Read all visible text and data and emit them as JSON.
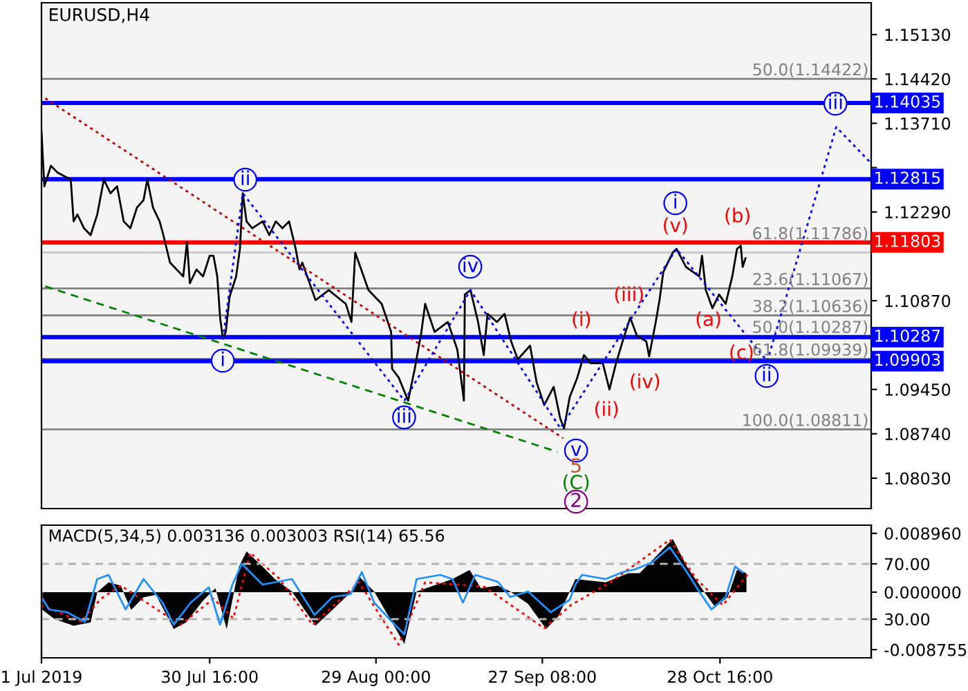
{
  "chart_data": [
    {
      "type": "line",
      "title": "EURUSD,H4",
      "xlim": [
        "2019-07-01T00:00",
        "2019-11-24T08:00"
      ],
      "ylim": [
        1.07543,
        1.15639
      ],
      "yticks": [
        {
          "value": 1.1513,
          "label": "1.15130"
        },
        {
          "value": 1.1442,
          "label": "1.14420"
        },
        {
          "value": 1.1371,
          "label": "1.13710"
        },
        {
          "value": 1.13,
          "label": null
        },
        {
          "value": 1.1229,
          "label": "1.12290"
        },
        {
          "value": 1.1087,
          "label": "1.10870"
        },
        {
          "value": 1.0945,
          "label": "1.09450"
        },
        {
          "value": 1.0874,
          "label": "1.08740"
        },
        {
          "value": 1.0803,
          "label": "1.08030"
        }
      ],
      "tick_labels": "y",
      "grid": false,
      "legend": false,
      "series": [
        {
          "color": "#000000",
          "x": [
            "2019-07-01T00:00",
            "2019-07-01T12:00",
            "2019-07-02T16:00",
            "2019-07-03T20:00",
            "2019-07-06T04:00",
            "2019-07-06T16:00",
            "2019-07-07T08:00",
            "2019-07-08T12:00",
            "2019-07-09T16:00",
            "2019-07-10T20:00",
            "2019-07-12T00:00",
            "2019-07-13T04:00",
            "2019-07-14T08:00",
            "2019-07-15T12:00",
            "2019-07-16T16:00",
            "2019-07-17T20:00",
            "2019-07-19T00:00",
            "2019-07-19T16:00",
            "2019-07-20T16:00",
            "2019-07-21T20:00",
            "2019-07-22T12:00",
            "2019-07-23T16:00",
            "2019-07-24T20:00",
            "2019-07-26T00:00",
            "2019-07-26T16:00",
            "2019-07-27T04:00",
            "2019-07-28T08:00",
            "2019-07-29T12:00",
            "2019-07-30T16:00",
            "2019-07-31T08:00",
            "2019-08-01T00:00",
            "2019-08-01T12:00",
            "2019-08-02T00:00",
            "2019-08-02T12:00",
            "2019-08-03T04:00",
            "2019-08-04T08:00",
            "2019-08-05T00:00",
            "2019-08-05T12:00",
            "2019-08-06T04:00",
            "2019-08-07T04:00",
            "2019-08-09T00:00",
            "2019-08-10T04:00",
            "2019-08-11T08:00",
            "2019-08-12T12:00",
            "2019-08-13T16:00",
            "2019-08-14T20:00",
            "2019-08-15T12:00",
            "2019-08-16T00:00",
            "2019-08-18T08:00",
            "2019-08-20T16:00",
            "2019-08-23T16:00",
            "2019-08-24T16:00",
            "2019-08-25T08:00",
            "2019-08-27T16:00",
            "2019-08-30T00:00",
            "2019-08-31T16:00",
            "2019-08-31T20:00",
            "2019-09-02T00:00",
            "2019-09-03T16:00",
            "2019-09-04T20:00",
            "2019-09-06T00:00",
            "2019-09-06T16:00",
            "2019-09-08T08:00",
            "2019-09-10T16:00",
            "2019-09-12T08:00",
            "2019-09-13T12:00",
            "2019-09-13T16:00",
            "2019-09-14T16:00",
            "2019-09-16T00:00",
            "2019-09-17T00:00",
            "2019-09-17T16:00",
            "2019-09-19T08:00",
            "2019-09-20T16:00",
            "2019-09-21T20:00",
            "2019-09-23T00:00",
            "2019-09-25T04:00",
            "2019-09-26T08:00",
            "2019-09-27T16:00",
            "2019-09-29T08:00",
            "2019-09-30T12:00",
            "2019-10-01T04:00",
            "2019-10-02T04:00",
            "2019-10-03T12:00",
            "2019-10-04T16:00",
            "2019-10-05T20:00",
            "2019-10-08T00:00",
            "2019-10-09T04:00",
            "2019-10-10T08:00",
            "2019-10-11T12:00",
            "2019-10-12T20:00",
            "2019-10-14T00:00",
            "2019-10-15T16:00",
            "2019-10-16T04:00",
            "2019-10-17T08:00",
            "2019-10-18T00:00",
            "2019-10-18T16:00",
            "2019-10-20T08:00",
            "2019-10-21T00:00",
            "2019-10-22T16:00",
            "2019-10-25T00:00",
            "2019-10-25T12:00",
            "2019-10-26T04:00",
            "2019-10-27T08:00",
            "2019-10-28T12:00",
            "2019-10-29T16:00",
            "2019-10-30T20:00",
            "2019-10-31T16:00",
            "2019-11-01T08:00",
            "2019-11-01T16:00",
            "2019-11-02T04:00"
          ],
          "values": [
            1.1358,
            1.127,
            1.1303,
            1.1292,
            1.1281,
            1.1214,
            1.1225,
            1.1203,
            1.1192,
            1.1225,
            1.1281,
            1.1259,
            1.127,
            1.1214,
            1.1203,
            1.1236,
            1.1248,
            1.1281,
            1.1236,
            1.1214,
            1.1192,
            1.1148,
            1.1137,
            1.1126,
            1.1181,
            1.1115,
            1.1137,
            1.1126,
            1.1159,
            1.1159,
            1.1126,
            1.106,
            1.1026,
            1.1037,
            1.1093,
            1.1126,
            1.117,
            1.1259,
            1.1214,
            1.1203,
            1.1214,
            1.1192,
            1.1214,
            1.1203,
            1.1214,
            1.117,
            1.1137,
            1.1148,
            1.1088,
            1.1104,
            1.1082,
            1.1053,
            1.1164,
            1.1104,
            1.1082,
            1.1037,
            1.0978,
            1.0964,
            1.0927,
            1.0978,
            1.1037,
            1.1082,
            1.1037,
            1.1053,
            1.1009,
            1.0927,
            1.1097,
            1.1104,
            1.1053,
            1.1,
            1.1066,
            1.1053,
            1.1066,
            1.1022,
            1.0993,
            1.1015,
            1.0956,
            1.092,
            1.0949,
            1.0898,
            1.0883,
            1.0933,
            1.0964,
            1.1,
            1.0987,
            1.0987,
            1.0945,
            1.0987,
            1.1022,
            1.106,
            1.1031,
            1.1022,
            1.0998,
            1.1053,
            1.1088,
            1.1133,
            1.1164,
            1.117,
            1.1141,
            1.1126,
            1.1159,
            1.1104,
            1.1075,
            1.1097,
            1.1082,
            1.1126,
            1.117,
            1.1175,
            1.1141,
            1.1155
          ]
        },
        {
          "color": "#c00000",
          "line_style": "dotted",
          "x": [
            "2019-07-01T16:00",
            "2019-10-01T00:00"
          ],
          "values": [
            1.1411,
            1.0867
          ]
        },
        {
          "color": "#008000",
          "line_style": "dashed",
          "x": [
            "2019-07-01T16:00",
            "2019-09-30T00:00"
          ],
          "values": [
            1.111,
            1.0845
          ]
        },
        {
          "color": "#0000ff",
          "line_style": "dotted",
          "x": [
            "2019-08-02T00:00",
            "2019-08-05T12:00",
            "2019-09-03T00:00",
            "2019-09-14T16:00",
            "2019-09-30T12:00",
            "2019-10-21T00:00",
            "2019-11-06T00:00",
            "2019-11-18T04:00",
            "2019-11-24T08:00"
          ],
          "values": [
            1.1026,
            1.1259,
            1.0927,
            1.1104,
            1.0883,
            1.117,
            1.099,
            1.1365,
            1.1307
          ]
        }
      ],
      "ref_lines": [
        {
          "axis": "y",
          "value": 1.14422,
          "label": "50.0(1.14422)",
          "color": "#808080"
        },
        {
          "axis": "y",
          "value": 1.11067,
          "label": "23.6(1.11067)",
          "color": "#808080"
        },
        {
          "axis": "y",
          "value": 1.10636,
          "label": "38.2(1.10636)",
          "color": "#808080"
        },
        {
          "axis": "y",
          "value": 1.09939,
          "label": "61.8(1.09939)",
          "color": "#808080"
        },
        {
          "axis": "y",
          "value": 1.08811,
          "label": "100.0(1.08811)",
          "color": "#808080"
        },
        {
          "axis": "y",
          "value": 1.11643,
          "color": "#c8c8c8"
        },
        {
          "axis": "y",
          "value": 1.14035,
          "label": "1.14035",
          "color": "#0000ff"
        },
        {
          "axis": "y",
          "value": 1.12815,
          "label": "1.12815",
          "color": "#0000ff"
        },
        {
          "axis": "y",
          "value": 1.11803,
          "label": "1.11803",
          "color": "#ff0000"
        },
        {
          "axis": "y",
          "value": 1.10287,
          "label": "1.10287",
          "color": "#0000ff"
        },
        {
          "axis": "y",
          "value": 1.09903,
          "label": "1.09903",
          "color": "#0000ff"
        }
      ],
      "annotations": [
        "i",
        "ii",
        "iii",
        "iv",
        "v",
        "5",
        "(C)",
        "2",
        "(i)",
        "(ii)",
        "(iii)",
        "(iv)",
        "(v)",
        "i",
        "(a)",
        "(b)",
        "(c)",
        "ii",
        "iii",
        "61.8(1.11786)",
        "50.0(1.10287)"
      ]
    },
    {
      "type": "area",
      "xlim": [
        "2019-07-01T00:00",
        "2019-11-24T08:00"
      ],
      "ylim": [
        -0.01,
        0.0102
      ],
      "xticks": [
        {
          "value": "2019-07-01T00:00",
          "label": "1 Jul 2019"
        },
        {
          "value": "2019-07-30T16:00",
          "label": "30 Jul 16:00"
        },
        {
          "value": "2019-08-29T00:00",
          "label": "29 Aug 00:00"
        },
        {
          "value": "2019-09-27T08:00",
          "label": "27 Sep 08:00"
        },
        {
          "value": "2019-10-28T16:00",
          "label": "28 Oct 16:00"
        }
      ],
      "yticks": [
        {
          "value": 0.00896,
          "label": "0.008960"
        },
        {
          "value": 0,
          "label": "0.000000"
        },
        {
          "value": -0.008755,
          "label": "-0.008755"
        }
      ],
      "y2lim": [
        2,
        98
      ],
      "y2ticks": [
        {
          "value": 70,
          "label": "70.00"
        },
        {
          "value": 30,
          "label": "30.00"
        }
      ],
      "grid": false,
      "legend": false,
      "annotations": [
        "MACD(5,34,5) 0.003136 0.003003 RSI(14) 65.56"
      ],
      "ref_lines": [
        {
          "axis": "y2",
          "value": 70,
          "color": "#b4b4b4",
          "line_style": "dashed"
        },
        {
          "axis": "y2",
          "value": 30,
          "color": "#b4b4b4",
          "line_style": "dashed"
        }
      ],
      "series": [
        {
          "type": "area",
          "color": "#000000",
          "x": [
            "2019-07-01T04:00",
            "2019-07-03T08:00",
            "2019-07-06T16:00",
            "2019-07-09T16:00",
            "2019-07-10T20:00",
            "2019-07-12T20:00",
            "2019-07-15T00:00",
            "2019-07-15T20:00",
            "2019-07-16T20:00",
            "2019-07-19T00:00",
            "2019-07-21T04:00",
            "2019-07-24T08:00",
            "2019-07-26T12:00",
            "2019-07-29T12:00",
            "2019-07-31T16:00",
            "2019-08-02T16:00",
            "2019-08-04T20:00",
            "2019-08-06T04:00",
            "2019-08-09T00:00",
            "2019-08-11T04:00",
            "2019-08-14T04:00",
            "2019-08-18T08:00",
            "2019-08-21T08:00",
            "2019-08-24T16:00",
            "2019-08-26T00:00",
            "2019-08-28T16:00",
            "2019-08-31T20:00",
            "2019-09-03T00:00",
            "2019-09-05T04:00",
            "2019-09-11T12:00",
            "2019-09-14T12:00",
            "2019-09-16T12:00",
            "2019-09-19T12:00",
            "2019-09-21T16:00",
            "2019-09-24T20:00",
            "2019-09-28T00:00",
            "2019-09-30T04:00",
            "2019-10-03T04:00",
            "2019-10-08T12:00",
            "2019-10-12T12:00",
            "2019-10-14T12:00",
            "2019-10-16T16:00",
            "2019-10-20T08:00",
            "2019-10-22T20:00",
            "2019-10-25T20:00",
            "2019-10-27T20:00",
            "2019-10-30T00:00",
            "2019-10-31T16:00",
            "2019-11-02T08:00"
          ],
          "values": [
            -0.0027,
            -0.0041,
            -0.0051,
            -0.0046,
            0,
            0.0015,
            0.001,
            -0.0008,
            -0.0027,
            -0.0008,
            -0.0004,
            -0.0056,
            -0.0046,
            -0.0013,
            0.0006,
            -0.0056,
            0.0039,
            0.0062,
            0.0039,
            0.002,
            0.0001,
            -0.0051,
            -0.0027,
            0.0001,
            0.0024,
            0.0001,
            -0.0046,
            -0.0079,
            0.0001,
            0.002,
            0.0034,
            0.0006,
            0.001,
            0.0001,
            -0.0018,
            -0.0056,
            -0.0037,
            0.002,
            0.0015,
            0.0029,
            0.0029,
            0.0048,
            0.0081,
            0.0039,
            0.0001,
            -0.0023,
            -0.0008,
            0.0034,
            0.0029
          ]
        },
        {
          "type": "line",
          "color": "#ff0000",
          "line_style": "dotted",
          "x": [
            "2019-07-01T00:00",
            "2019-07-08T00:00",
            "2019-07-11T12:00",
            "2019-07-15T00:00",
            "2019-07-18T12:00",
            "2019-07-25T12:00",
            "2019-07-31T08:00",
            "2019-08-03T20:00",
            "2019-08-06T20:00",
            "2019-08-12T00:00",
            "2019-08-17T20:00",
            "2019-08-26T00:00",
            "2019-09-02T00:00",
            "2019-09-06T16:00",
            "2019-09-17T04:00",
            "2019-09-27T16:00",
            "2019-10-02T08:00",
            "2019-10-09T08:00",
            "2019-10-19T20:00",
            "2019-10-24T12:00",
            "2019-10-29T04:00",
            "2019-11-02T20:00"
          ],
          "values": [
            -0.002,
            -0.0045,
            -0.001,
            0.001,
            -0.001,
            -0.005,
            -0.001,
            -0.004,
            0.006,
            0.002,
            -0.005,
            0.0015,
            -0.008,
            0.0015,
            0.0008,
            -0.0055,
            -0.002,
            0.0015,
            0.008,
            0.002,
            -0.002,
            0.003
          ]
        },
        {
          "type": "line",
          "axis": "y2",
          "color": "#1e90ff",
          "x": [
            "2019-07-01T00:00",
            "2019-07-02T08:00",
            "2019-07-05T12:00",
            "2019-07-08T16:00",
            "2019-07-10T20:00",
            "2019-07-12T20:00",
            "2019-07-15T20:00",
            "2019-07-19T00:00",
            "2019-07-22T08:00",
            "2019-07-24T08:00",
            "2019-07-27T08:00",
            "2019-07-30T12:00",
            "2019-08-01T12:00",
            "2019-08-03T16:00",
            "2019-08-05T08:00",
            "2019-08-09T00:00",
            "2019-08-14T04:00",
            "2019-08-18T04:00",
            "2019-08-21T08:00",
            "2019-08-24T12:00",
            "2019-08-26T12:00",
            "2019-08-28T16:00",
            "2019-08-31T20:00",
            "2019-09-03T00:00",
            "2019-09-05T04:00",
            "2019-09-09T08:00",
            "2019-09-11T12:00",
            "2019-09-13T08:00",
            "2019-09-15T12:00",
            "2019-09-19T12:00",
            "2019-09-21T16:00",
            "2019-09-24T20:00",
            "2019-09-28T20:00",
            "2019-10-02T04:00",
            "2019-10-03T04:00",
            "2019-10-04T08:00",
            "2019-10-08T12:00",
            "2019-10-11T12:00",
            "2019-10-13T16:00",
            "2019-10-16T16:00",
            "2019-10-19T20:00",
            "2019-10-22T20:00",
            "2019-10-25T00:00",
            "2019-10-27T04:00",
            "2019-10-29T16:00",
            "2019-10-31T08:00",
            "2019-11-01T16:00"
          ],
          "values": [
            46,
            37,
            35,
            28,
            59,
            62,
            37,
            59,
            42,
            26,
            42,
            53,
            26,
            55,
            70,
            55,
            59,
            33,
            46,
            48,
            64,
            42,
            28,
            19,
            59,
            62,
            59,
            42,
            62,
            57,
            46,
            50,
            35,
            44,
            55,
            62,
            59,
            64,
            66,
            71,
            82,
            64,
            50,
            37,
            46,
            68,
            64
          ]
        }
      ]
    }
  ]
}
